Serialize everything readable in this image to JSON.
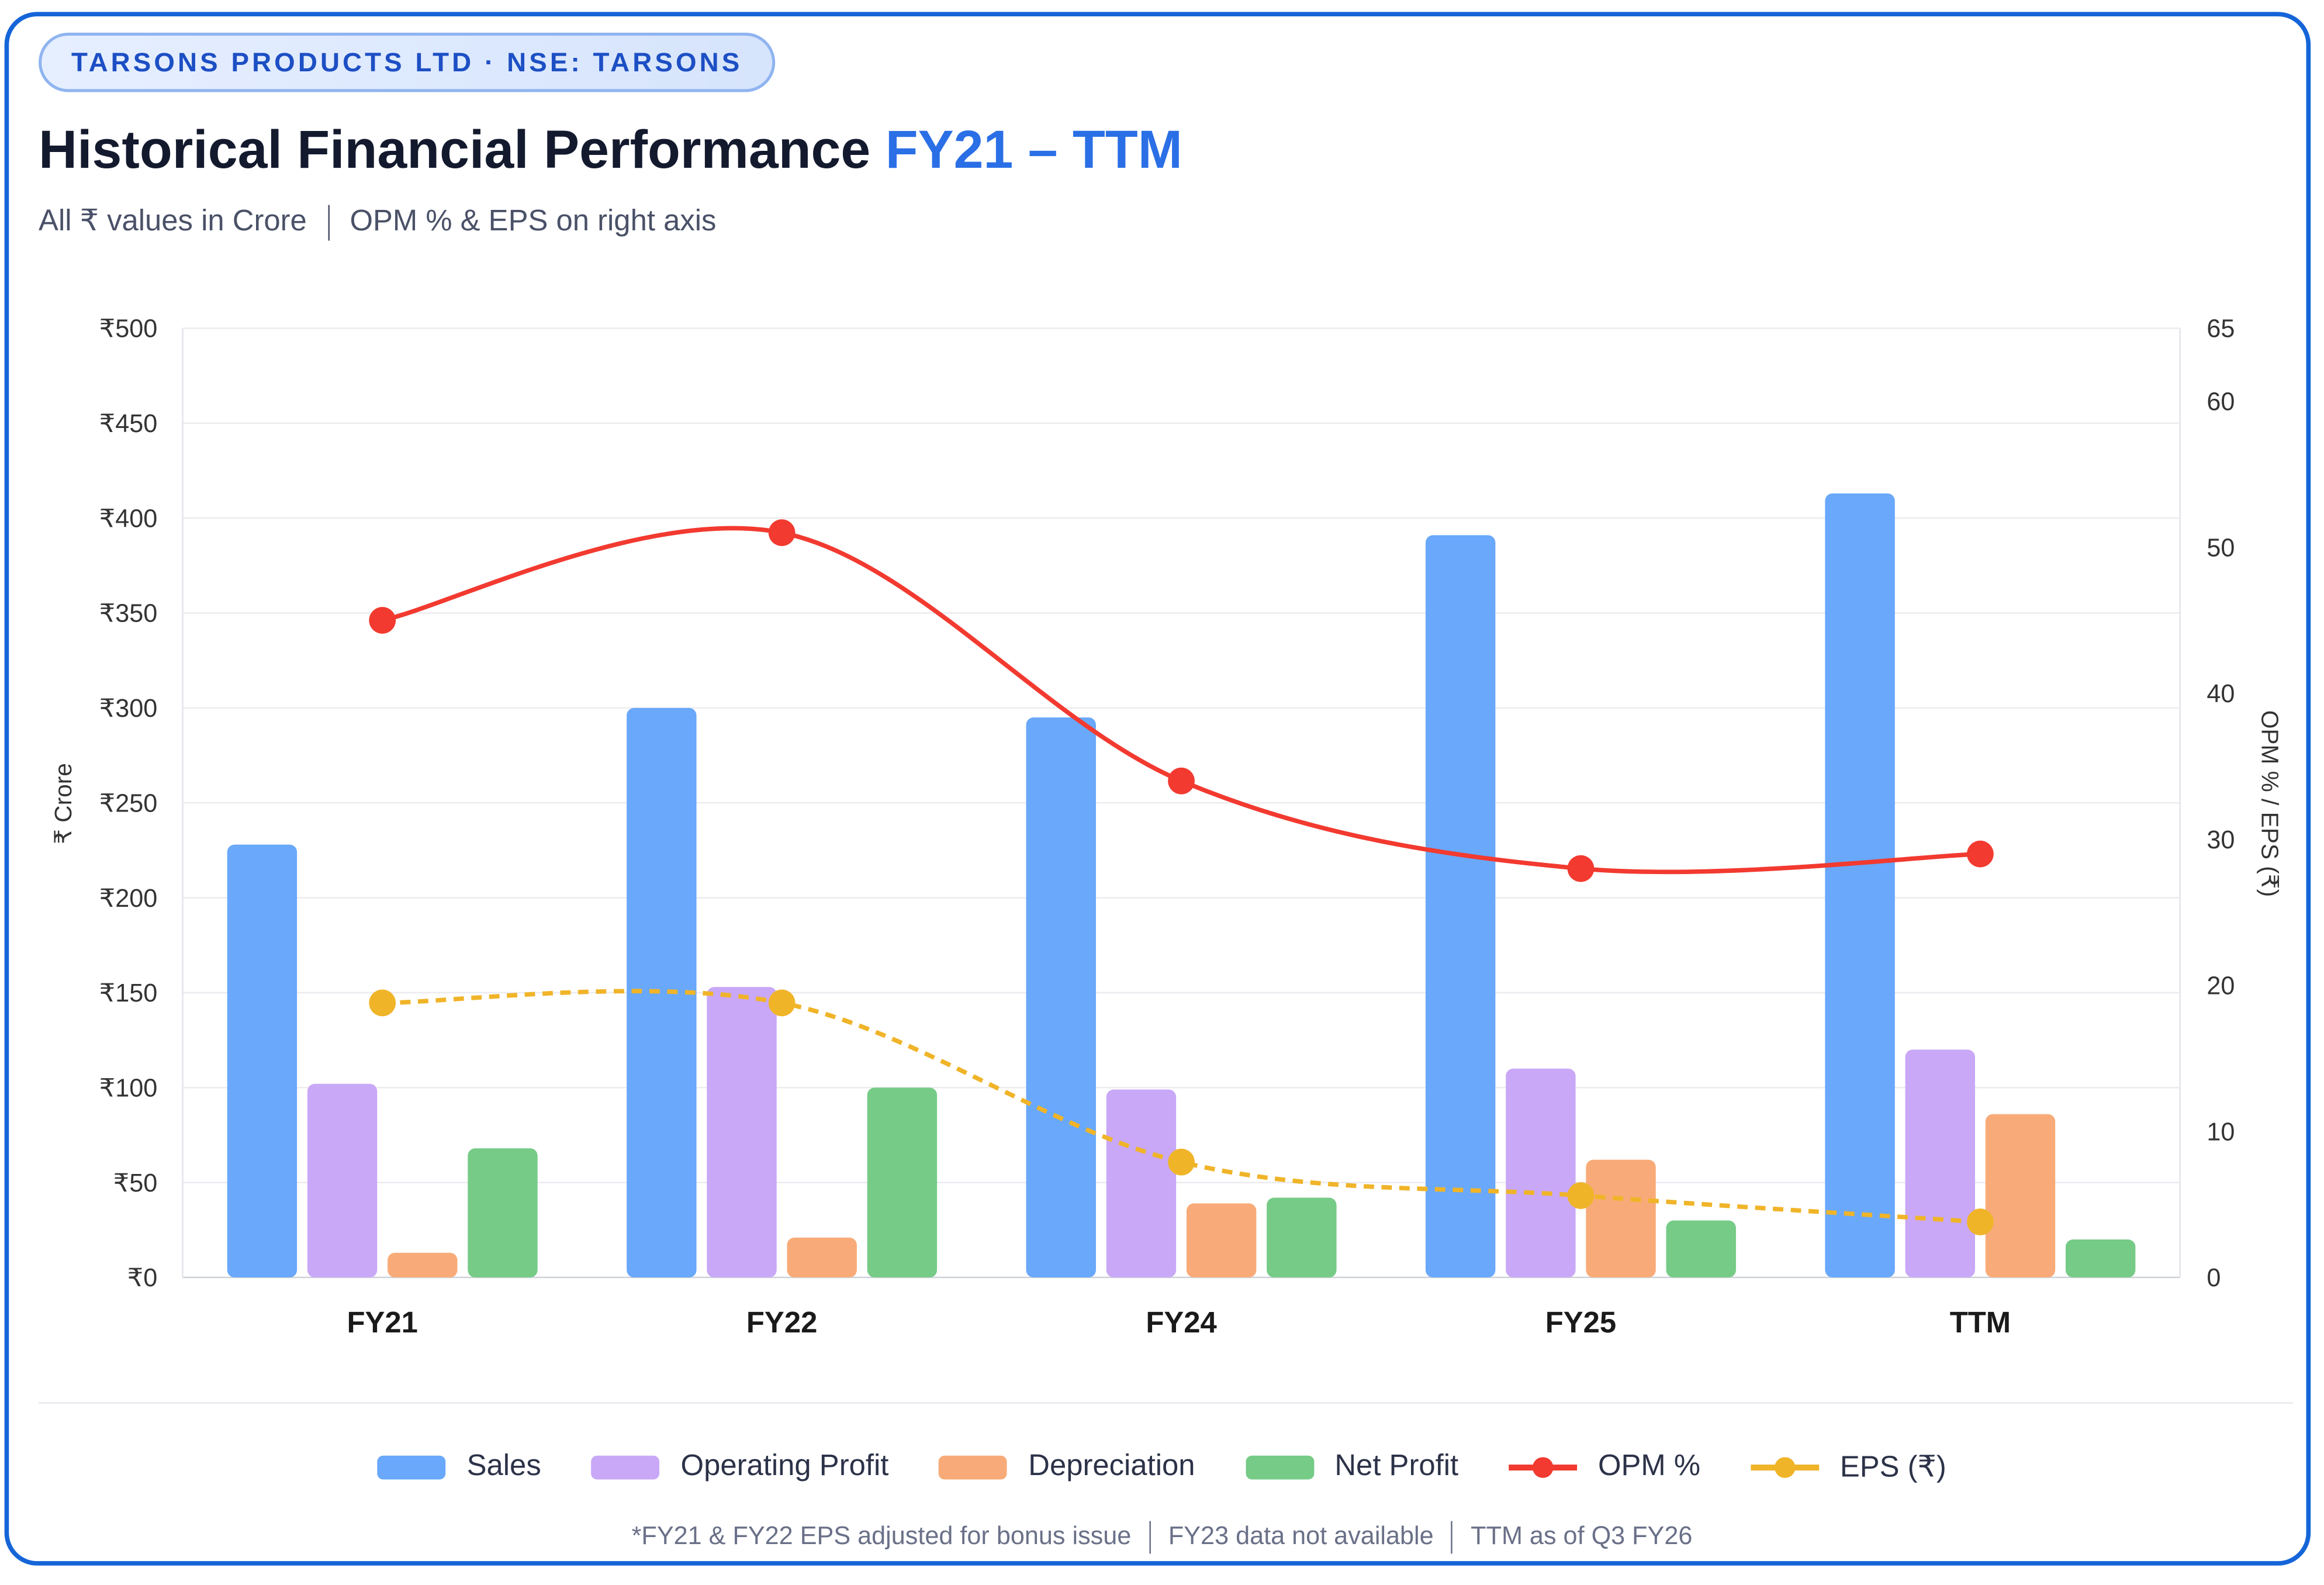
{
  "badge": "TARSONS PRODUCTS LTD · NSE: TARSONS",
  "title": {
    "main": "Historical Financial Performance",
    "highlight": "FY21 – TTM"
  },
  "subtitle": {
    "left": "All ₹ values in Crore",
    "right": "OPM % & EPS on right axis"
  },
  "footnote": {
    "a": "*FY21 & FY22 EPS adjusted for bonus issue",
    "b": "FY23 data not available",
    "c": "TTM as of Q3 FY26"
  },
  "chart_data": {
    "type": "bar",
    "categories": [
      "FY21",
      "FY22",
      "FY24",
      "FY25",
      "TTM"
    ],
    "ylabel": "₹ Crore",
    "y2label": "OPM % / EPS (₹)",
    "ylim": [
      0,
      500
    ],
    "y2lim": [
      0,
      65
    ],
    "yticks": [
      "₹0",
      "₹50",
      "₹100",
      "₹150",
      "₹200",
      "₹250",
      "₹300",
      "₹350",
      "₹400",
      "₹450",
      "₹500"
    ],
    "y2ticks": [
      0,
      10,
      20,
      30,
      40,
      50,
      60,
      65
    ],
    "grid": true,
    "legend_position": "bottom",
    "series": [
      {
        "name": "Sales",
        "type": "bar",
        "axis": "left",
        "color": "#69a8fa",
        "values": [
          228,
          300,
          295,
          391,
          413
        ]
      },
      {
        "name": "Operating Profit",
        "type": "bar",
        "axis": "left",
        "color": "#c9a8f7",
        "values": [
          102,
          153,
          99,
          110,
          120
        ]
      },
      {
        "name": "Depreciation",
        "type": "bar",
        "axis": "left",
        "color": "#f8ab78",
        "values": [
          13,
          21,
          39,
          62,
          86
        ]
      },
      {
        "name": "Net Profit",
        "type": "bar",
        "axis": "left",
        "color": "#76cb87",
        "values": [
          68,
          100,
          42,
          30,
          20
        ]
      },
      {
        "name": "OPM %",
        "type": "line",
        "axis": "right",
        "color": "#f23a30",
        "dashed": false,
        "values": [
          45,
          51,
          34,
          28,
          29
        ]
      },
      {
        "name": "EPS (₹)",
        "type": "line",
        "axis": "right",
        "color": "#f0b429",
        "dashed": true,
        "values": [
          18.8,
          18.8,
          7.9,
          5.6,
          3.8
        ]
      }
    ]
  }
}
